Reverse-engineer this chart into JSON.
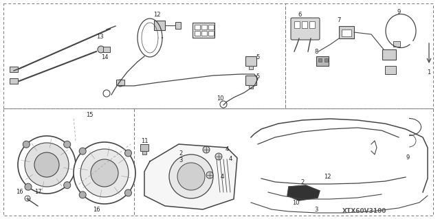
{
  "background_color": "#ffffff",
  "fig_width": 6.4,
  "fig_height": 3.19,
  "dpi": 100,
  "watermark": "XTX60V3100",
  "line_color": "#444444",
  "text_color": "#222222",
  "fs": 6.0
}
